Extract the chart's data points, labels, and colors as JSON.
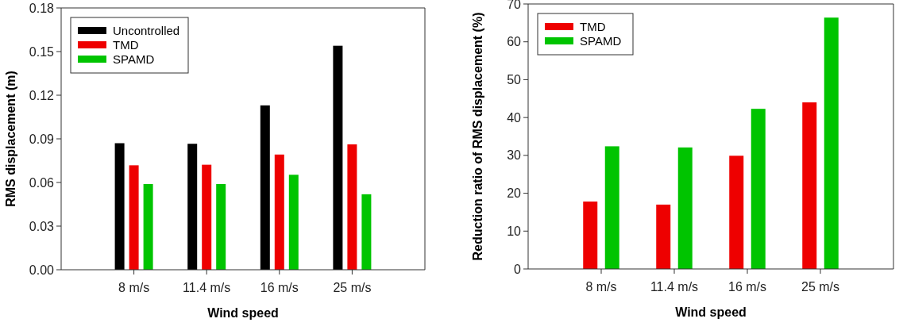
{
  "chart_data": [
    {
      "type": "bar",
      "xlabel": "Wind speed",
      "ylabel": "RMS displacement (m)",
      "categories": [
        "8 m/s",
        "11.4 m/s",
        "16 m/s",
        "25 m/s"
      ],
      "series": [
        {
          "name": "Uncontrolled",
          "color": "#000000",
          "values": [
            0.087,
            0.0866,
            0.113,
            0.154
          ]
        },
        {
          "name": "TMD",
          "color": "#ee0000",
          "values": [
            0.0718,
            0.0722,
            0.0792,
            0.0862
          ]
        },
        {
          "name": "SPAMD",
          "color": "#00c400",
          "values": [
            0.0589,
            0.0589,
            0.0653,
            0.0519
          ]
        }
      ],
      "ylim": [
        0,
        0.18
      ],
      "yticks": [
        {
          "value": 0,
          "label": "0.00"
        },
        {
          "value": 0.03,
          "label": "0.03"
        },
        {
          "value": 0.06,
          "label": "0.06"
        },
        {
          "value": 0.09,
          "label": "0.09"
        },
        {
          "value": 0.12,
          "label": "0.12"
        },
        {
          "value": 0.15,
          "label": "0.15"
        },
        {
          "value": 0.18,
          "label": "0.18"
        }
      ],
      "grid": false,
      "legend": "top left"
    },
    {
      "type": "bar",
      "xlabel": "Wind speed",
      "ylabel": "Reduction ratio of RMS displacement (%)",
      "categories": [
        "8 m/s",
        "11.4 m/s",
        "16 m/s",
        "25 m/s"
      ],
      "series": [
        {
          "name": "TMD",
          "color": "#ee0000",
          "values": [
            17.8,
            17.0,
            29.9,
            44.0
          ]
        },
        {
          "name": "SPAMD",
          "color": "#00c400",
          "values": [
            32.4,
            32.1,
            42.3,
            66.4
          ]
        }
      ],
      "ylim": [
        0,
        70
      ],
      "yticks": [
        0,
        10,
        20,
        30,
        40,
        50,
        60,
        70
      ],
      "grid": false,
      "legend": "top left"
    }
  ]
}
